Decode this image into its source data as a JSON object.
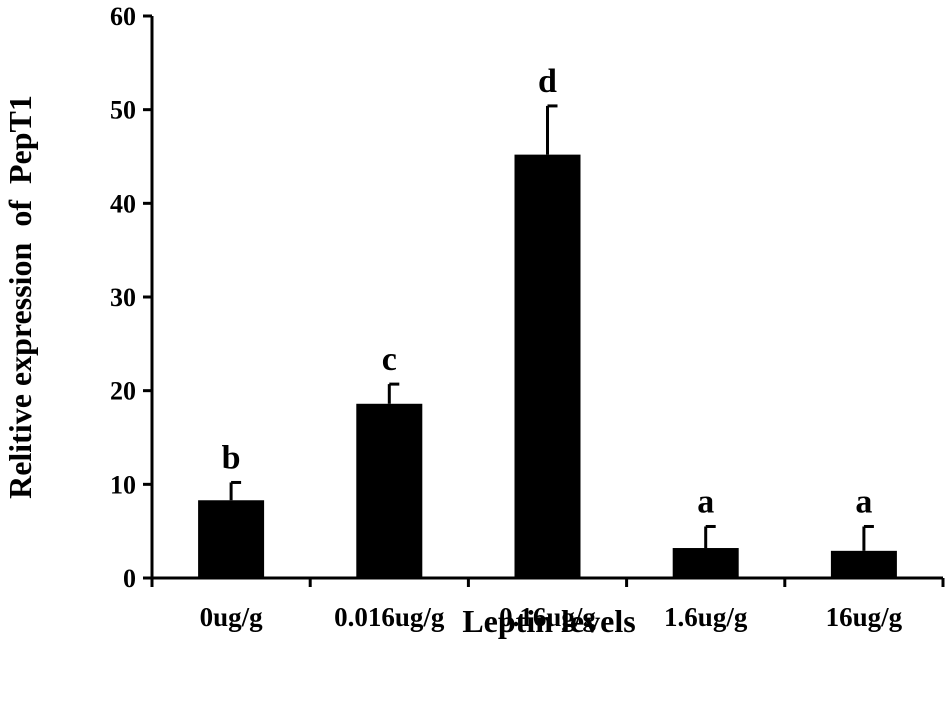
{
  "chart_data": {
    "type": "bar",
    "categories": [
      "0ug/g",
      "0.016ug/g",
      "0.16ug/g",
      "1.6ug/g",
      "16ug/g"
    ],
    "series": [
      {
        "values": [
          8.3,
          18.6,
          45.2,
          3.2,
          2.9
        ],
        "error": [
          1.9,
          2.1,
          5.2,
          2.3,
          2.6
        ],
        "significance": [
          "b",
          "c",
          "d",
          "a",
          "a"
        ]
      }
    ],
    "title": "",
    "xlabel": "Leptin levels",
    "ylabel": "Relitive expression  of  PepT1",
    "ylim": [
      0,
      60
    ],
    "yticks": [
      0,
      10,
      20,
      30,
      40,
      50,
      60
    ],
    "grid": false,
    "legend": "none",
    "colors": {
      "bar": "#000000",
      "axis": "#000000",
      "text": "#000000"
    }
  }
}
